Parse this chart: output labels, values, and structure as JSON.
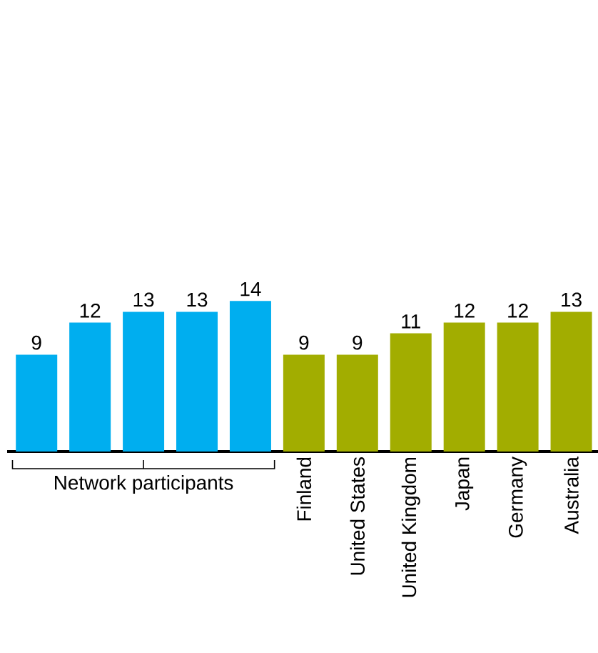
{
  "chart_data": {
    "type": "bar",
    "categories": [
      null,
      null,
      null,
      null,
      null,
      "Finland",
      "United States",
      "United Kingdom",
      "Japan",
      "Germany",
      "Australia"
    ],
    "values": [
      9,
      12,
      13,
      13,
      14,
      9,
      9,
      11,
      12,
      12,
      13
    ],
    "colors": [
      "#00aeef",
      "#00aeef",
      "#00aeef",
      "#00aeef",
      "#00aeef",
      "#a2ad00",
      "#a2ad00",
      "#a2ad00",
      "#a2ad00",
      "#a2ad00",
      "#a2ad00"
    ],
    "data_labels": true,
    "annotations": [
      "Network participants"
    ]
  }
}
